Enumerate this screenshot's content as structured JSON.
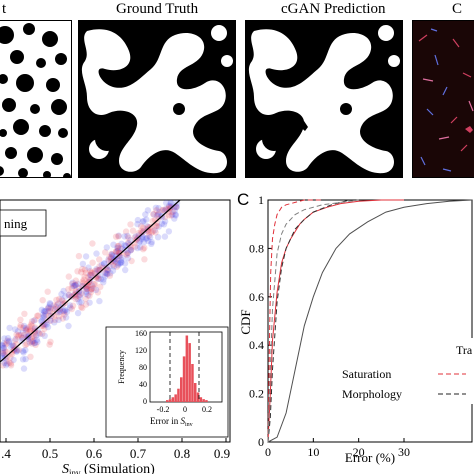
{
  "top_row": {
    "titles": [
      "t",
      "Ground Truth",
      "cGAN Prediction",
      "C"
    ]
  },
  "panel_c_letter": "C",
  "scatter": {
    "legend_fragment": "ning",
    "x_tick_labels": [
      ".4",
      "0.5",
      "0.6",
      "0.7",
      "0.8",
      "0.9"
    ],
    "x_label_main": "S",
    "x_label_sub": "inv",
    "x_label_rest": " (Simulation)",
    "colors": {
      "red": "#e83a4a",
      "blue": "#3a3ae8",
      "line": "#000000"
    }
  },
  "inset": {
    "ylabel": "Frequency",
    "y_tick_labels": [
      "0",
      "40",
      "80",
      "120",
      "160"
    ],
    "x_tick_labels": [
      "-0.2",
      "0",
      "0.2"
    ],
    "xlabel_main": "Error in ",
    "xlabel_s": "S",
    "xlabel_sub": "inv"
  },
  "chart_data": {
    "type": "line",
    "ylabel": "CDF",
    "xlabel": "Error (%)",
    "ylim": [
      0,
      1
    ],
    "xlim": [
      0,
      45
    ],
    "y_ticks": [
      0,
      0.2,
      0.4,
      0.6,
      0.8,
      1
    ],
    "y_tick_labels": [
      "0",
      "0.2",
      "0.4",
      "0.6",
      "0.8",
      "1"
    ],
    "x_ticks": [
      0,
      10,
      20,
      30
    ],
    "x_tick_labels": [
      "0",
      "10",
      "20",
      "30"
    ],
    "legend_title": "Tra",
    "legend": [
      {
        "label": "Saturation",
        "color": "#e0303a",
        "dash": "solid"
      },
      {
        "label": "Morphology",
        "color": "#202020",
        "dash": "dashed"
      }
    ],
    "series": [
      {
        "color": "#e0303a",
        "dash": "solid",
        "x": [
          0,
          0.5,
          1,
          2,
          3,
          4,
          5,
          6,
          7,
          8,
          10,
          13,
          16,
          20,
          25,
          30
        ],
        "y": [
          0,
          0.2,
          0.42,
          0.62,
          0.74,
          0.8,
          0.84,
          0.87,
          0.9,
          0.92,
          0.95,
          0.97,
          0.985,
          0.995,
          1,
          1
        ]
      },
      {
        "color": "#e0303a",
        "dash": "dashed",
        "x": [
          0,
          0.3,
          0.6,
          1,
          1.5,
          2,
          3,
          4,
          6,
          8,
          12
        ],
        "y": [
          0,
          0.4,
          0.7,
          0.84,
          0.9,
          0.94,
          0.97,
          0.98,
          0.99,
          1,
          1
        ]
      },
      {
        "color": "#505050",
        "dash": "solid",
        "x": [
          0,
          2,
          4,
          6,
          8,
          10,
          12,
          15,
          18,
          22,
          26,
          30,
          35,
          40,
          45
        ],
        "y": [
          0,
          0.02,
          0.12,
          0.3,
          0.48,
          0.6,
          0.7,
          0.8,
          0.86,
          0.91,
          0.95,
          0.97,
          0.985,
          0.995,
          1
        ]
      },
      {
        "color": "#303030",
        "dash": "dashed",
        "x": [
          0,
          0.5,
          1,
          2,
          3,
          4,
          6,
          8,
          10,
          14,
          18
        ],
        "y": [
          0,
          0.1,
          0.3,
          0.58,
          0.72,
          0.8,
          0.88,
          0.92,
          0.95,
          0.98,
          1
        ]
      },
      {
        "color": "#808080",
        "dash": "dashed",
        "x": [
          0,
          0.5,
          1,
          2,
          3,
          4,
          6,
          8,
          12,
          16,
          20
        ],
        "y": [
          0,
          0.3,
          0.55,
          0.78,
          0.86,
          0.9,
          0.94,
          0.96,
          0.98,
          0.99,
          1
        ]
      }
    ]
  }
}
